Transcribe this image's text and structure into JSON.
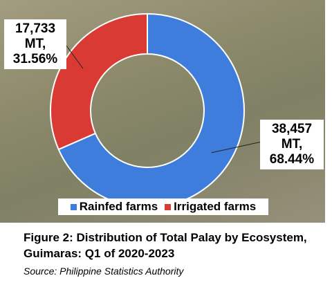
{
  "chart_data": {
    "type": "pie",
    "hole": true,
    "categories": [
      "Rainfed farms",
      "Irrigated farms"
    ],
    "values": [
      68.44,
      31.56
    ],
    "value_labels": [
      "38,457 MT, 68.44%",
      "17,733 MT, 31.56%"
    ],
    "colors": [
      "#3f7ddc",
      "#d93b34"
    ],
    "legend": "bottom",
    "caption": [
      "Figure 2: Distribution of Total Palay by Ecosystem,",
      "Guimaras: Q1 of 2020-2023"
    ],
    "source": "Source: Philippine Statistics Authority"
  }
}
